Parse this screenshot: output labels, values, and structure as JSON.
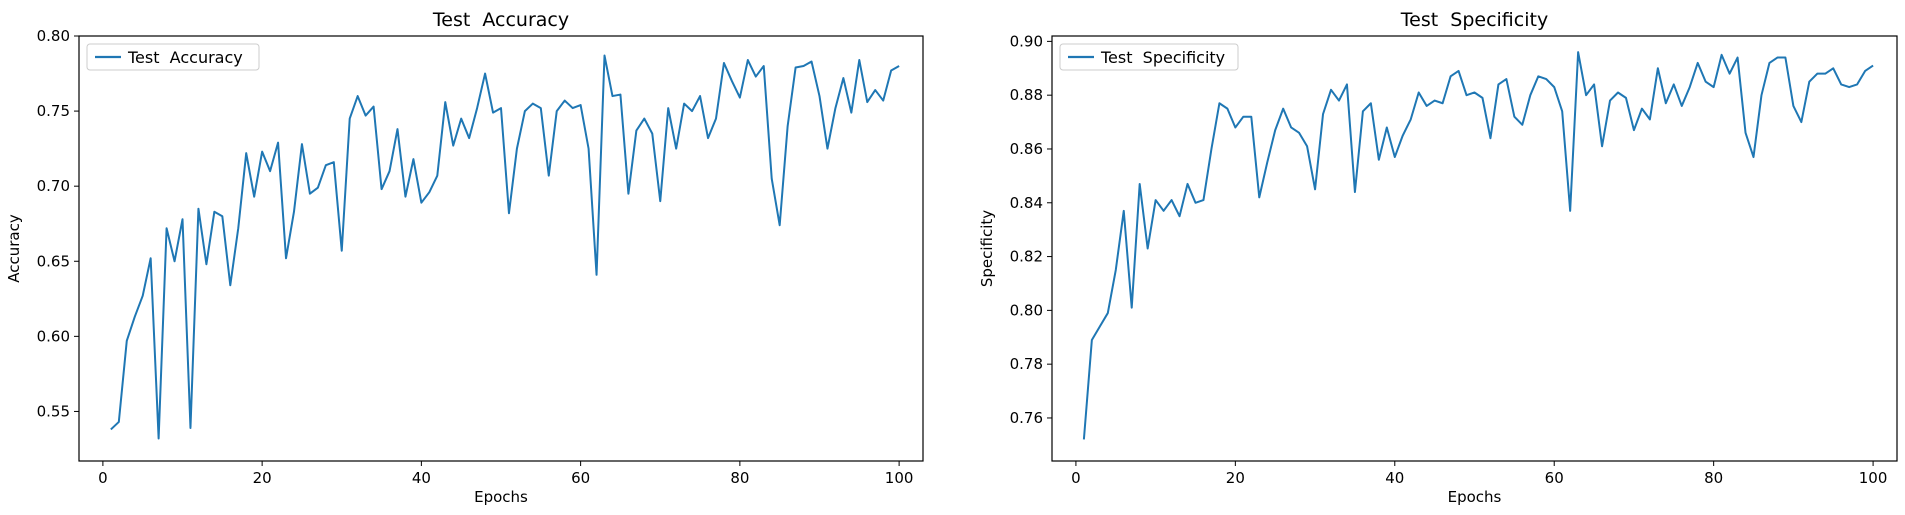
{
  "chart_data": [
    {
      "type": "line",
      "title": "Test  Accuracy",
      "xlabel": "Epochs",
      "ylabel": "Accuracy",
      "xlim": [
        -3,
        103
      ],
      "ylim": [
        0.517,
        0.8
      ],
      "xticks": [
        0,
        20,
        40,
        60,
        80,
        100
      ],
      "xtick_labels": [
        "0",
        "20",
        "40",
        "60",
        "80",
        "100"
      ],
      "yticks": [
        0.55,
        0.6,
        0.65,
        0.7,
        0.75,
        0.8
      ],
      "ytick_labels": [
        "0.55",
        "0.60",
        "0.65",
        "0.70",
        "0.75",
        "0.80"
      ],
      "legend": "upper-left",
      "grid": false,
      "color": "#1f77b4",
      "series": [
        {
          "name": "Test  Accuracy",
          "x": [
            1,
            2,
            3,
            4,
            5,
            6,
            7,
            8,
            9,
            10,
            11,
            12,
            13,
            14,
            15,
            16,
            17,
            18,
            19,
            20,
            21,
            22,
            23,
            24,
            25,
            26,
            27,
            28,
            29,
            30,
            31,
            32,
            33,
            34,
            35,
            36,
            37,
            38,
            39,
            40,
            41,
            42,
            43,
            44,
            45,
            46,
            47,
            48,
            49,
            50,
            51,
            52,
            53,
            54,
            55,
            56,
            57,
            58,
            59,
            60,
            61,
            62,
            63,
            64,
            65,
            66,
            67,
            68,
            69,
            70,
            71,
            72,
            73,
            74,
            75,
            76,
            77,
            78,
            79,
            80,
            81,
            82,
            83,
            84,
            85,
            86,
            87,
            88,
            89,
            90,
            91,
            92,
            93,
            94,
            95,
            96,
            97,
            98,
            99,
            100
          ],
          "values": [
            0.538,
            0.543,
            0.597,
            0.613,
            0.627,
            0.652,
            0.532,
            0.672,
            0.65,
            0.678,
            0.539,
            0.685,
            0.648,
            0.683,
            0.68,
            0.634,
            0.672,
            0.722,
            0.693,
            0.723,
            0.71,
            0.729,
            0.652,
            0.683,
            0.728,
            0.695,
            0.699,
            0.714,
            0.716,
            0.657,
            0.745,
            0.76,
            0.747,
            0.753,
            0.698,
            0.71,
            0.738,
            0.693,
            0.718,
            0.689,
            0.696,
            0.707,
            0.756,
            0.727,
            0.745,
            0.732,
            0.752,
            0.775,
            0.749,
            0.752,
            0.682,
            0.725,
            0.75,
            0.755,
            0.752,
            0.707,
            0.75,
            0.757,
            0.752,
            0.754,
            0.725,
            0.641,
            0.787,
            0.76,
            0.761,
            0.695,
            0.737,
            0.745,
            0.735,
            0.69,
            0.752,
            0.725,
            0.755,
            0.75,
            0.76,
            0.732,
            0.745,
            0.782,
            0.77,
            0.759,
            0.784,
            0.773,
            0.78,
            0.705,
            0.674,
            0.74,
            0.779,
            0.78,
            0.783,
            0.76,
            0.725,
            0.752,
            0.772,
            0.749,
            0.784,
            0.756,
            0.764,
            0.757,
            0.777,
            0.78
          ]
        }
      ]
    },
    {
      "type": "line",
      "title": "Test  Specificity",
      "xlabel": "Epochs",
      "ylabel": "Specificity",
      "xlim": [
        -3,
        103
      ],
      "ylim": [
        0.744,
        0.902
      ],
      "xticks": [
        0,
        20,
        40,
        60,
        80,
        100
      ],
      "xtick_labels": [
        "0",
        "20",
        "40",
        "60",
        "80",
        "100"
      ],
      "yticks": [
        0.76,
        0.78,
        0.8,
        0.82,
        0.84,
        0.86,
        0.88,
        0.9
      ],
      "ytick_labels": [
        "0.76",
        "0.78",
        "0.80",
        "0.82",
        "0.84",
        "0.86",
        "0.88",
        "0.90"
      ],
      "legend": "upper-left",
      "grid": false,
      "color": "#1f77b4",
      "series": [
        {
          "name": "Test  Specificity",
          "x": [
            1,
            2,
            3,
            4,
            5,
            6,
            7,
            8,
            9,
            10,
            11,
            12,
            13,
            14,
            15,
            16,
            17,
            18,
            19,
            20,
            21,
            22,
            23,
            24,
            25,
            26,
            27,
            28,
            29,
            30,
            31,
            32,
            33,
            34,
            35,
            36,
            37,
            38,
            39,
            40,
            41,
            42,
            43,
            44,
            45,
            46,
            47,
            48,
            49,
            50,
            51,
            52,
            53,
            54,
            55,
            56,
            57,
            58,
            59,
            60,
            61,
            62,
            63,
            64,
            65,
            66,
            67,
            68,
            69,
            70,
            71,
            72,
            73,
            74,
            75,
            76,
            77,
            78,
            79,
            80,
            81,
            82,
            83,
            84,
            85,
            86,
            87,
            88,
            89,
            90,
            91,
            92,
            93,
            94,
            95,
            96,
            97,
            98,
            99,
            100
          ],
          "values": [
            0.752,
            0.789,
            0.794,
            0.799,
            0.815,
            0.837,
            0.801,
            0.847,
            0.823,
            0.841,
            0.837,
            0.841,
            0.835,
            0.847,
            0.84,
            0.841,
            0.86,
            0.877,
            0.875,
            0.868,
            0.872,
            0.872,
            0.842,
            0.855,
            0.867,
            0.875,
            0.868,
            0.866,
            0.861,
            0.845,
            0.873,
            0.882,
            0.878,
            0.884,
            0.844,
            0.874,
            0.877,
            0.856,
            0.868,
            0.857,
            0.865,
            0.871,
            0.881,
            0.876,
            0.878,
            0.877,
            0.887,
            0.889,
            0.88,
            0.881,
            0.879,
            0.864,
            0.884,
            0.886,
            0.872,
            0.869,
            0.88,
            0.887,
            0.886,
            0.883,
            0.874,
            0.837,
            0.896,
            0.88,
            0.884,
            0.861,
            0.878,
            0.881,
            0.879,
            0.867,
            0.875,
            0.871,
            0.89,
            0.877,
            0.884,
            0.876,
            0.883,
            0.892,
            0.885,
            0.883,
            0.895,
            0.888,
            0.894,
            0.866,
            0.857,
            0.88,
            0.892,
            0.894,
            0.894,
            0.876,
            0.87,
            0.885,
            0.888,
            0.888,
            0.89,
            0.884,
            0.883,
            0.884,
            0.889,
            0.891
          ]
        }
      ]
    }
  ]
}
